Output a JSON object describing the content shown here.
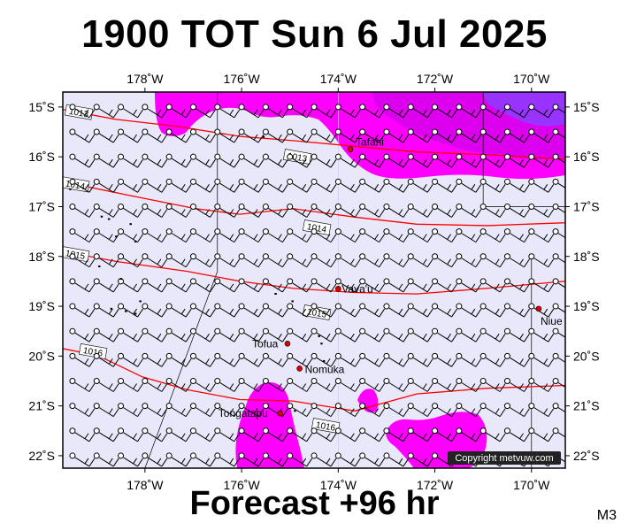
{
  "header": {
    "title": "1900 TOT Sun 6 Jul 2025"
  },
  "footer": {
    "forecast": "Forecast +96 hr",
    "model_code": "M3"
  },
  "map": {
    "projection": "lon-lat",
    "lon_range": [
      -179.7,
      -169.3
    ],
    "lat_range": [
      -22.25,
      -14.7
    ],
    "lon_ticks": [
      {
        "value": -178,
        "label": "178˚W"
      },
      {
        "value": -176,
        "label": "176˚W"
      },
      {
        "value": -174,
        "label": "174˚W"
      },
      {
        "value": -172,
        "label": "172˚W"
      },
      {
        "value": -170,
        "label": "170˚W"
      }
    ],
    "lat_ticks": [
      {
        "value": -15,
        "label": "15˚S"
      },
      {
        "value": -16,
        "label": "16˚S"
      },
      {
        "value": -17,
        "label": "17˚S"
      },
      {
        "value": -18,
        "label": "18˚S"
      },
      {
        "value": -19,
        "label": "19˚S"
      },
      {
        "value": -20,
        "label": "20˚S"
      },
      {
        "value": -21,
        "label": "21˚S"
      },
      {
        "value": -22,
        "label": "22˚S"
      }
    ],
    "places": [
      {
        "name": "Tafahi",
        "lon": -173.75,
        "lat": -15.85
      },
      {
        "name": "Vava'u",
        "lon": -174.0,
        "lat": -18.65
      },
      {
        "name": "Niue",
        "lon": -169.85,
        "lat": -19.05
      },
      {
        "name": "Tofua",
        "lon": -175.05,
        "lat": -19.75
      },
      {
        "name": "Nomuka",
        "lon": -174.8,
        "lat": -20.25
      },
      {
        "name": "Tongatapu",
        "lon": -175.2,
        "lat": -21.15
      }
    ],
    "isobars": [
      {
        "label": "1013",
        "lat": -15.25
      },
      {
        "label": "1014",
        "lat": -16.55
      },
      {
        "label": "1015",
        "lat": -17.85
      },
      {
        "label": "1016",
        "lat": -19.6
      }
    ],
    "copyright": "Copyright metvuw.com",
    "colors": {
      "sea": "#e8e8fa",
      "rain_heavy": "#ff00ff",
      "rain_heavier": "#dd00ee",
      "rain_intense": "#9933ff",
      "isobar": "#ff0000",
      "wind_barb": "#000000",
      "place_marker": "#dd0000"
    },
    "wind": {
      "direction": "easterly",
      "barb_symbol": "station-circle-with-barb"
    }
  }
}
